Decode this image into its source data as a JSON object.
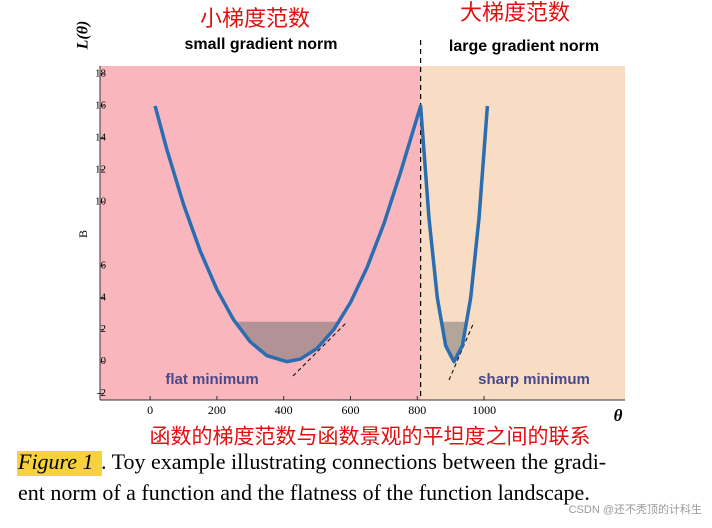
{
  "chart_data": {
    "type": "line",
    "title_left": "小梯度范数",
    "title_right": "大梯度范数",
    "subtitle_left": "small gradient norm",
    "subtitle_right": "large gradient norm",
    "annotation_left": "flat minimum",
    "annotation_right": "sharp minimum",
    "y_axis_label": "L(θ)",
    "x_axis_label": "θ",
    "y_marker": "B",
    "x": [
      15,
      50,
      100,
      150,
      200,
      250,
      300,
      350,
      410,
      450,
      500,
      550,
      600,
      650,
      700,
      750,
      810,
      835,
      860,
      885,
      910,
      935,
      960,
      985,
      1010
    ],
    "series": [
      {
        "color": "#2a6db0",
        "values": [
          16,
          13.29,
          9.85,
          6.93,
          4.52,
          2.62,
          1.24,
          0.37,
          0,
          0.16,
          0.83,
          2.01,
          3.7,
          5.91,
          8.62,
          11.85,
          16,
          9,
          4,
          1,
          0,
          1,
          4,
          9,
          16
        ]
      }
    ],
    "split_x": 810,
    "region_colors": [
      "#f9b6bd",
      "#f8dcc4"
    ],
    "xlim": [
      -150,
      1422
    ],
    "ylim": [
      -2.4,
      18.5
    ],
    "xticks": [
      0,
      200,
      400,
      600,
      800,
      1000
    ],
    "yticks": [
      18,
      16,
      14,
      12,
      10,
      6,
      4,
      2,
      0,
      -2
    ],
    "caption_red": "函数的梯度范数与函数景观的平坦度之间的联系",
    "figure_label": "Figure 1",
    "caption_lines": [
      ". Toy example illustrating connections between the gradi-",
      "ent norm of a function and the flatness of the function landscape."
    ],
    "watermark": "CSDN @还不秃顶的计科生"
  }
}
